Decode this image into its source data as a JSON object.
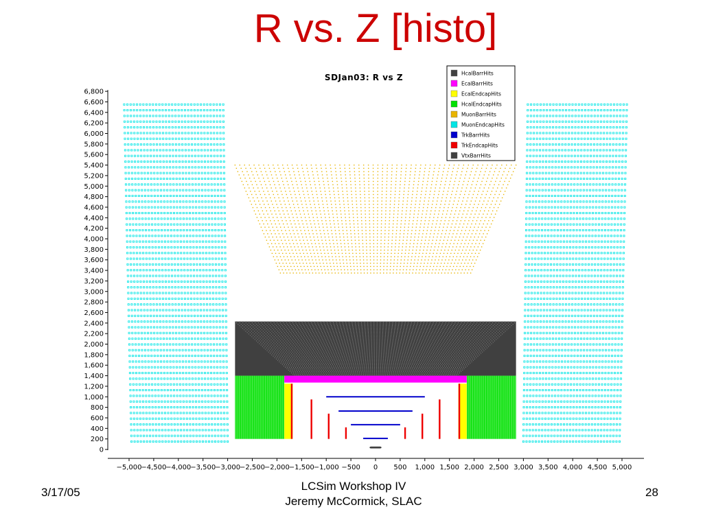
{
  "slide": {
    "title": "R vs. Z [histo]",
    "date": "3/17/05",
    "footer_line1": "LCSim Workshop IV",
    "footer_line2": "Jeremy McCormick, SLAC",
    "page": "28"
  },
  "chart_data": {
    "type": "scatter",
    "title": "SDJan03: R vs Z",
    "xlabel": "",
    "ylabel": "",
    "xlim": [
      -5100,
      5100
    ],
    "ylim": [
      0,
      6800
    ],
    "xticks": [
      -5000,
      -4500,
      -4000,
      -3500,
      -3000,
      -2500,
      -2000,
      -1500,
      -1000,
      -500,
      0,
      500,
      1000,
      1500,
      2000,
      2500,
      3000,
      3500,
      4000,
      4500,
      5000
    ],
    "yticks": [
      0,
      200,
      400,
      600,
      800,
      1000,
      1200,
      1400,
      1600,
      1800,
      2000,
      2200,
      2400,
      2600,
      2800,
      3000,
      3200,
      3400,
      3600,
      3800,
      4000,
      4200,
      4400,
      4600,
      4800,
      5000,
      5200,
      5400,
      5600,
      5800,
      6000,
      6200,
      6400,
      6600,
      6800
    ],
    "legend_position": "top-right",
    "series": [
      {
        "name": "HcalBarrHits",
        "color": "#404040",
        "z_range": [
          -2850,
          2850
        ],
        "r_range": [
          1400,
          2430
        ]
      },
      {
        "name": "EcalBarrHits",
        "color": "#ff00ff",
        "z_range": [
          -1850,
          1850
        ],
        "r_range": [
          1270,
          1400
        ]
      },
      {
        "name": "EcalEndcapHits",
        "color": "#ffff00",
        "z_range_abs": [
          1680,
          1850
        ],
        "r_range": [
          200,
          1250
        ]
      },
      {
        "name": "HcalEndcapHits",
        "color": "#00e000",
        "z_range_abs": [
          1850,
          2850
        ],
        "r_range": [
          200,
          1400
        ]
      },
      {
        "name": "MuonBarrHits",
        "color": "#e8b400",
        "z_range": [
          -2850,
          2850
        ],
        "r_range": [
          3350,
          5400
        ]
      },
      {
        "name": "MuonEndcapHits",
        "color": "#00e5e5",
        "z_range_abs": [
          3000,
          4950
        ],
        "r_range": [
          150,
          6550
        ]
      },
      {
        "name": "TrkBarrHits",
        "color": "#0000cc",
        "layers": [
          {
            "z": 1000,
            "r": 1000
          },
          {
            "z": 750,
            "r": 730
          },
          {
            "z": 500,
            "r": 470
          },
          {
            "z": 250,
            "r": 210
          }
        ]
      },
      {
        "name": "TrkEndcapHits",
        "color": "#ee0000",
        "layers": [
          {
            "z": 1700,
            "r_range": [
              200,
              1250
            ]
          },
          {
            "z": 1300,
            "r_range": [
              200,
              950
            ]
          },
          {
            "z": 950,
            "r_range": [
              200,
              680
            ]
          },
          {
            "z": 600,
            "r_range": [
              200,
              420
            ]
          },
          {
            "z": 250,
            "r_range": [
              200,
              160
            ]
          }
        ]
      },
      {
        "name": "VtxBarrHits",
        "color": "#404040",
        "z_range": [
          -120,
          120
        ],
        "r_range": [
          20,
          55
        ]
      }
    ]
  }
}
